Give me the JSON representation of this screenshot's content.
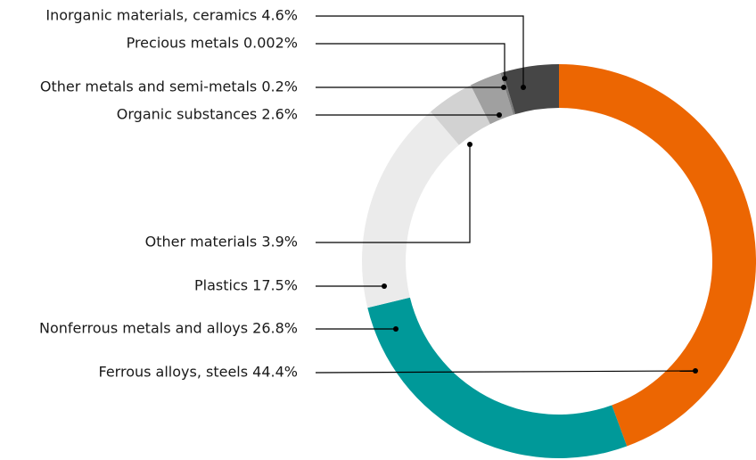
{
  "chart_data": {
    "type": "donut",
    "title": "",
    "start_angle_deg": 0,
    "direction": "clockwise",
    "segments": [
      {
        "label": "Ferrous alloys, steels 44.4%",
        "name": "Ferrous alloys, steels",
        "value": 44.4,
        "color": "#ec6602"
      },
      {
        "label": "Nonferrous metals and alloys 26.8%",
        "name": "Nonferrous metals and alloys",
        "value": 26.8,
        "color": "#009999"
      },
      {
        "label": "Plastics 17.5%",
        "name": "Plastics",
        "value": 17.5,
        "color": "#ebebeb"
      },
      {
        "label": "Other materials 3.9%",
        "name": "Other materials",
        "value": 3.9,
        "color": "#d2d2d2"
      },
      {
        "label": "Organic substances 2.6%",
        "name": "Organic substances",
        "value": 2.6,
        "color": "#a0a0a0"
      },
      {
        "label": "Other metals and semi-metals 0.2%",
        "name": "Other metals and semi-metals",
        "value": 0.2,
        "color": "#7d7d7d"
      },
      {
        "label": "Precious metals 0.002%",
        "name": "Precious metals",
        "value": 0.002,
        "color": "#6e6e6e"
      },
      {
        "label": "Inorganic materials, ceramics 4.6%",
        "name": "Inorganic materials, ceramics",
        "value": 4.6,
        "color": "#464646"
      }
    ]
  }
}
